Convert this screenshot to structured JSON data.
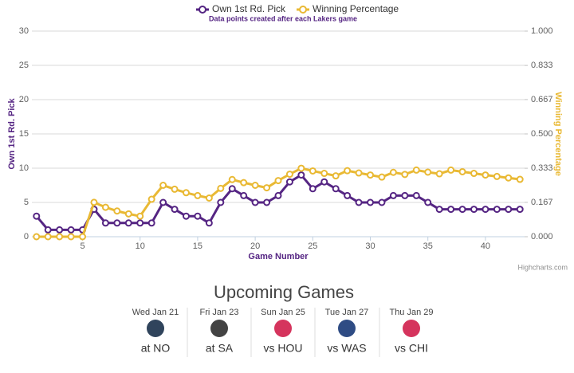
{
  "chart_data": {
    "type": "line",
    "subtitle": "Data points created after each Lakers game",
    "x_label": "Game Number",
    "y_label": "Own 1st Rd. Pick",
    "y2_label": "Winning Percentage",
    "credits": "Highcharts.com",
    "x": [
      1,
      2,
      3,
      4,
      5,
      6,
      7,
      8,
      9,
      10,
      11,
      12,
      13,
      14,
      15,
      16,
      17,
      18,
      19,
      20,
      21,
      22,
      23,
      24,
      25,
      26,
      27,
      28,
      29,
      30,
      31,
      32,
      33,
      34,
      35,
      36,
      37,
      38,
      39,
      40,
      41,
      42,
      43
    ],
    "series": [
      {
        "name": "Own 1st Rd. Pick",
        "color": "#552583",
        "values": [
          3,
          1,
          1,
          1,
          1,
          4,
          2,
          2,
          2,
          2,
          2,
          5,
          4,
          3,
          3,
          2,
          5,
          7,
          6,
          5,
          5,
          6,
          8,
          9,
          7,
          8,
          7,
          6,
          5,
          5,
          5,
          6,
          6,
          6,
          5,
          4,
          4,
          4,
          4,
          4,
          4,
          4,
          4
        ]
      },
      {
        "name": "Winning Percentage",
        "color": "#e9b934",
        "axis": "y2",
        "values": [
          0,
          0,
          0,
          0,
          0,
          0.167,
          0.143,
          0.125,
          0.111,
          0.1,
          0.182,
          0.25,
          0.231,
          0.214,
          0.2,
          0.188,
          0.235,
          0.278,
          0.263,
          0.25,
          0.238,
          0.273,
          0.304,
          0.333,
          0.32,
          0.308,
          0.296,
          0.321,
          0.31,
          0.3,
          0.29,
          0.313,
          0.303,
          0.324,
          0.314,
          0.306,
          0.324,
          0.316,
          0.308,
          0.3,
          0.293,
          0.286,
          0.279
        ]
      }
    ],
    "xlim": [
      0.6,
      43.4
    ],
    "xticks": [
      5,
      10,
      15,
      20,
      25,
      30,
      35,
      40
    ],
    "ylim": [
      0,
      30
    ],
    "yticks": [
      0,
      5,
      10,
      15,
      20,
      25,
      30
    ],
    "y2lim": [
      0,
      1
    ],
    "y2ticks": [
      {
        "value": 0,
        "label": "0.000"
      },
      {
        "value": 0.167,
        "label": "0.167"
      },
      {
        "value": 0.333,
        "label": "0.333"
      },
      {
        "value": 0.5,
        "label": "0.500"
      },
      {
        "value": 0.667,
        "label": "0.667"
      },
      {
        "value": 0.833,
        "label": "0.833"
      },
      {
        "value": 1,
        "label": "1.000"
      }
    ],
    "grid": true,
    "legend": "top"
  },
  "upcoming_games": {
    "title": "Upcoming Games",
    "games": [
      {
        "date": "Wed Jan 21",
        "matchup": "at NO",
        "logo_color": "#0c2340"
      },
      {
        "date": "Fri Jan 23",
        "matchup": "at SA",
        "logo_color": "#222222"
      },
      {
        "date": "Sun Jan 25",
        "matchup": "vs HOU",
        "logo_color": "#ce1141"
      },
      {
        "date": "Tue Jan 27",
        "matchup": "vs WAS",
        "logo_color": "#0b2d6f"
      },
      {
        "date": "Thu Jan 29",
        "matchup": "vs CHI",
        "logo_color": "#ce1141"
      }
    ]
  }
}
